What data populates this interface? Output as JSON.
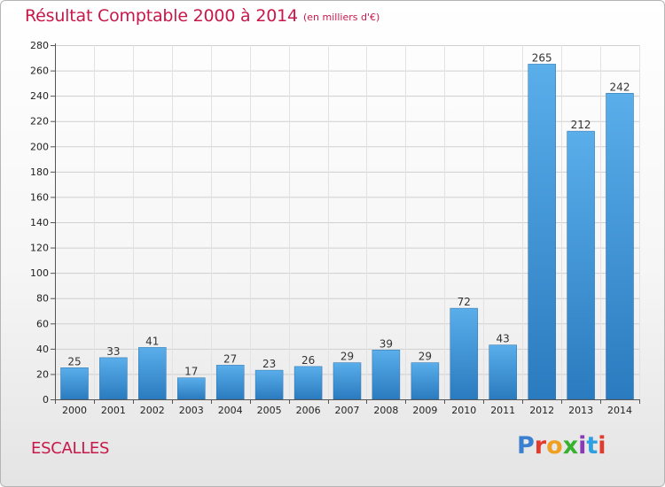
{
  "header": {
    "title": "Résultat Comptable 2000 à 2014",
    "subtitle": "(en milliers d'€)"
  },
  "footer": {
    "commune": "ESCALLES",
    "logo_text": "Proxiti",
    "logo_letter_colors": [
      "#3a7fd0",
      "#e23a2c",
      "#f0a020",
      "#38b030",
      "#8a3ab8",
      "#2e9fe0",
      "#e23a2c"
    ]
  },
  "chart_data": {
    "type": "bar",
    "categories": [
      "2000",
      "2001",
      "2002",
      "2003",
      "2004",
      "2005",
      "2006",
      "2007",
      "2008",
      "2009",
      "2010",
      "2011",
      "2012",
      "2013",
      "2014"
    ],
    "values": [
      25,
      33,
      41,
      17,
      27,
      23,
      26,
      29,
      39,
      29,
      72,
      43,
      265,
      212,
      242
    ],
    "title": "Résultat Comptable 2000 à 2014",
    "subtitle": "(en milliers d'€)",
    "xlabel": "",
    "ylabel": "",
    "ylim": [
      0,
      280
    ],
    "yticks": [
      0,
      20,
      40,
      60,
      80,
      100,
      120,
      140,
      160,
      180,
      200,
      220,
      240,
      260,
      280
    ],
    "grid": true,
    "legend": "none",
    "bar_color_top": "#5aaeea",
    "bar_color_bottom": "#2a7bbf"
  }
}
